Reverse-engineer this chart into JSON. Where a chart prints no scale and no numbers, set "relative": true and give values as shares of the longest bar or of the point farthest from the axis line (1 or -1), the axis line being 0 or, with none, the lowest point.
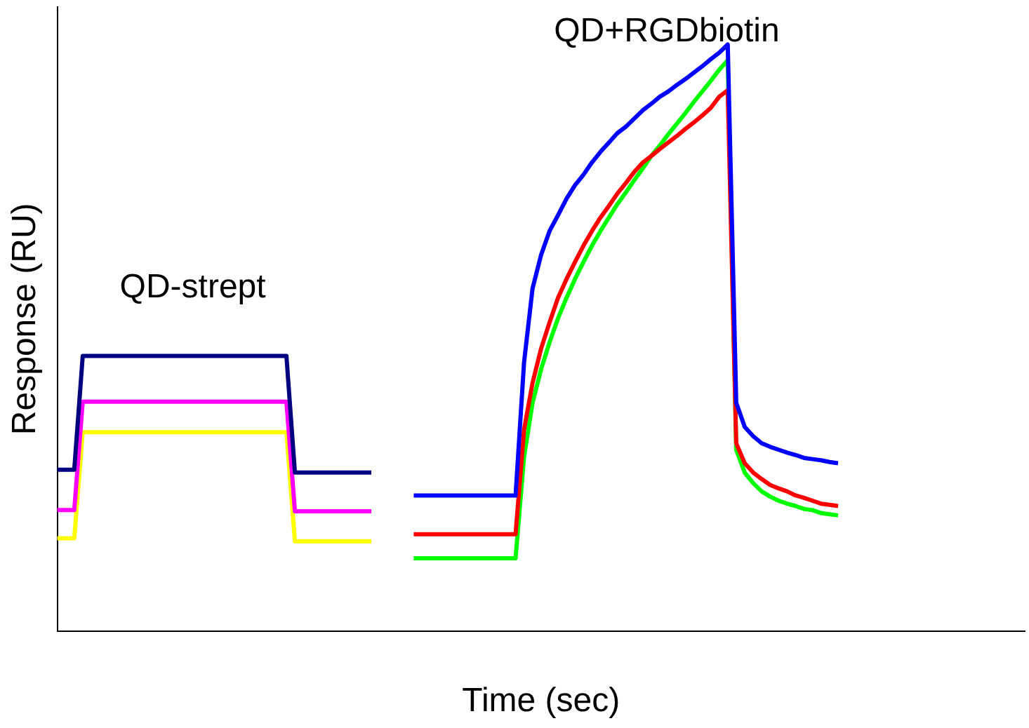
{
  "chart_data": {
    "type": "line",
    "relative": true,
    "xlabel": "Time (sec)",
    "ylabel": "Response (RU)",
    "annotations": [
      "QD-strept",
      "QD+RGDbiotin"
    ],
    "categories": [
      null,
      null,
      null,
      null,
      null,
      null,
      null,
      null,
      null,
      null,
      null,
      null,
      null,
      null,
      null,
      null,
      null,
      null,
      null,
      null,
      null,
      null,
      null,
      null,
      null,
      null,
      null,
      null,
      null,
      null,
      null,
      null,
      null,
      null,
      null,
      null,
      null,
      null,
      null,
      null,
      null,
      null,
      null,
      null,
      null,
      null,
      null,
      null,
      null,
      null,
      null,
      null,
      null,
      null,
      null,
      null,
      null,
      null,
      null,
      null,
      null,
      null,
      null,
      null,
      null,
      null,
      null,
      null,
      null,
      null,
      null,
      null,
      null,
      null,
      null,
      null,
      null,
      null,
      null,
      null,
      null,
      null,
      null,
      null,
      null,
      null,
      null,
      null,
      null,
      null,
      null,
      null,
      null,
      null,
      null,
      null,
      null,
      null,
      null,
      null,
      null,
      null,
      null,
      null,
      null,
      null,
      null,
      null,
      null,
      null,
      null,
      null,
      null,
      null,
      null
    ],
    "series": [
      {
        "color": "#000080",
        "values": [
          0.275,
          0.275,
          0.275,
          0.469,
          0.469,
          0.469,
          0.469,
          0.469,
          0.469,
          0.469,
          0.469,
          0.469,
          0.469,
          0.469,
          0.469,
          0.469,
          0.469,
          0.469,
          0.469,
          0.469,
          0.469,
          0.469,
          0.469,
          0.469,
          0.469,
          0.469,
          0.469,
          0.469,
          0.27,
          0.27,
          0.27,
          0.27,
          0.27,
          0.27,
          0.27,
          0.27,
          0.27,
          0.27,
          null,
          null,
          null,
          null,
          null,
          null,
          null,
          null,
          null,
          null,
          null,
          null,
          null,
          null,
          null,
          null,
          null,
          null,
          null,
          null,
          null,
          null,
          null,
          null,
          null,
          null,
          null,
          null,
          null,
          null,
          null,
          null,
          null,
          null,
          null,
          null,
          null,
          null,
          null,
          null,
          null,
          null,
          null,
          null,
          null,
          null,
          null,
          null,
          null,
          null,
          null,
          null,
          null,
          null,
          null,
          null,
          null,
          null,
          null,
          null,
          null,
          null,
          null,
          null,
          null,
          null,
          null,
          null,
          null,
          null,
          null,
          null,
          null,
          null,
          null,
          null,
          null
        ]
      },
      {
        "color": "#ff00ff",
        "values": [
          0.206,
          0.206,
          0.206,
          0.391,
          0.391,
          0.391,
          0.391,
          0.391,
          0.391,
          0.391,
          0.391,
          0.391,
          0.391,
          0.391,
          0.391,
          0.391,
          0.391,
          0.391,
          0.391,
          0.391,
          0.391,
          0.391,
          0.391,
          0.391,
          0.391,
          0.391,
          0.391,
          0.391,
          0.204,
          0.204,
          0.204,
          0.204,
          0.204,
          0.204,
          0.204,
          0.204,
          0.204,
          0.204,
          null,
          null,
          null,
          null,
          null,
          null,
          null,
          null,
          null,
          null,
          null,
          null,
          null,
          null,
          null,
          null,
          null,
          null,
          null,
          null,
          null,
          null,
          null,
          null,
          null,
          null,
          null,
          null,
          null,
          null,
          null,
          null,
          null,
          null,
          null,
          null,
          null,
          null,
          null,
          null,
          null,
          null,
          null,
          null,
          null,
          null,
          null,
          null,
          null,
          null,
          null,
          null,
          null,
          null,
          null,
          null,
          null,
          null,
          null,
          null,
          null,
          null,
          null,
          null,
          null,
          null,
          null,
          null,
          null,
          null,
          null,
          null,
          null,
          null,
          null,
          null,
          null
        ]
      },
      {
        "color": "#ffff00",
        "values": [
          0.158,
          0.158,
          0.158,
          0.339,
          0.339,
          0.339,
          0.339,
          0.339,
          0.339,
          0.339,
          0.339,
          0.339,
          0.339,
          0.339,
          0.339,
          0.339,
          0.339,
          0.339,
          0.339,
          0.339,
          0.339,
          0.339,
          0.339,
          0.339,
          0.339,
          0.339,
          0.339,
          0.339,
          0.153,
          0.153,
          0.153,
          0.153,
          0.153,
          0.153,
          0.153,
          0.153,
          0.153,
          0.153,
          null,
          null,
          null,
          null,
          null,
          null,
          null,
          null,
          null,
          null,
          null,
          null,
          null,
          null,
          null,
          null,
          null,
          null,
          null,
          null,
          null,
          null,
          null,
          null,
          null,
          null,
          null,
          null,
          null,
          null,
          null,
          null,
          null,
          null,
          null,
          null,
          null,
          null,
          null,
          null,
          null,
          null,
          null,
          null,
          null,
          null,
          null,
          null,
          null,
          null,
          null,
          null,
          null,
          null,
          null,
          null,
          null,
          null,
          null,
          null,
          null,
          null,
          null,
          null,
          null,
          null,
          null,
          null,
          null,
          null,
          null,
          null,
          null,
          null,
          null,
          null,
          null
        ]
      },
      {
        "color": "#0000ff",
        "values": [
          null,
          null,
          null,
          null,
          null,
          null,
          null,
          null,
          null,
          null,
          null,
          null,
          null,
          null,
          null,
          null,
          null,
          null,
          null,
          null,
          null,
          null,
          null,
          null,
          null,
          null,
          null,
          null,
          null,
          null,
          null,
          null,
          null,
          null,
          null,
          null,
          null,
          null,
          null,
          null,
          null,
          null,
          0.231,
          0.231,
          0.231,
          0.231,
          0.231,
          0.231,
          0.231,
          0.231,
          0.231,
          0.231,
          0.231,
          0.231,
          0.231,
          0.458,
          0.584,
          0.641,
          0.682,
          0.709,
          0.737,
          0.76,
          0.778,
          0.799,
          0.817,
          0.833,
          0.849,
          0.86,
          0.874,
          0.888,
          0.899,
          0.911,
          0.92,
          0.931,
          0.941,
          0.952,
          0.963,
          0.975,
          0.986,
          1,
          0.389,
          0.348,
          0.332,
          0.32,
          0.314,
          0.309,
          0.304,
          0.3,
          0.295,
          0.293,
          0.291,
          0.288,
          0.286,
          null,
          null,
          null,
          null,
          null,
          null,
          null,
          null,
          null,
          null,
          null,
          null,
          null,
          null,
          null,
          null,
          null,
          null,
          null,
          null,
          null,
          null
        ]
      },
      {
        "color": "#ff0000",
        "values": [
          null,
          null,
          null,
          null,
          null,
          null,
          null,
          null,
          null,
          null,
          null,
          null,
          null,
          null,
          null,
          null,
          null,
          null,
          null,
          null,
          null,
          null,
          null,
          null,
          null,
          null,
          null,
          null,
          null,
          null,
          null,
          null,
          null,
          null,
          null,
          null,
          null,
          null,
          null,
          null,
          null,
          null,
          0.165,
          0.165,
          0.165,
          0.165,
          0.165,
          0.165,
          0.165,
          0.165,
          0.165,
          0.165,
          0.165,
          0.165,
          0.165,
          0.343,
          0.423,
          0.481,
          0.526,
          0.568,
          0.6,
          0.629,
          0.657,
          0.682,
          0.705,
          0.725,
          0.746,
          0.764,
          0.783,
          0.799,
          0.81,
          0.822,
          0.833,
          0.844,
          0.856,
          0.867,
          0.879,
          0.892,
          0.911,
          0.922,
          0.32,
          0.286,
          0.27,
          0.259,
          0.249,
          0.243,
          0.238,
          0.231,
          0.227,
          0.222,
          0.217,
          0.215,
          0.213,
          null,
          null,
          null,
          null,
          null,
          null,
          null,
          null,
          null,
          null,
          null,
          null,
          null,
          null,
          null,
          null,
          null,
          null,
          null,
          null,
          null,
          null
        ]
      },
      {
        "color": "#00ff00",
        "values": [
          null,
          null,
          null,
          null,
          null,
          null,
          null,
          null,
          null,
          null,
          null,
          null,
          null,
          null,
          null,
          null,
          null,
          null,
          null,
          null,
          null,
          null,
          null,
          null,
          null,
          null,
          null,
          null,
          null,
          null,
          null,
          null,
          null,
          null,
          null,
          null,
          null,
          null,
          null,
          null,
          null,
          null,
          0.124,
          0.124,
          0.124,
          0.124,
          0.124,
          0.124,
          0.124,
          0.124,
          0.124,
          0.124,
          0.124,
          0.124,
          0.124,
          0.297,
          0.389,
          0.446,
          0.492,
          0.533,
          0.568,
          0.6,
          0.629,
          0.657,
          0.682,
          0.705,
          0.728,
          0.748,
          0.769,
          0.789,
          0.81,
          0.828,
          0.847,
          0.865,
          0.883,
          0.902,
          0.92,
          0.938,
          0.957,
          0.973,
          0.309,
          0.27,
          0.252,
          0.238,
          0.229,
          0.222,
          0.217,
          0.213,
          0.208,
          0.206,
          0.201,
          0.199,
          0.197,
          null,
          null,
          null,
          null,
          null,
          null,
          null,
          null,
          null,
          null,
          null,
          null,
          null,
          null,
          null,
          null,
          null,
          null,
          null,
          null,
          null,
          null
        ]
      }
    ]
  }
}
